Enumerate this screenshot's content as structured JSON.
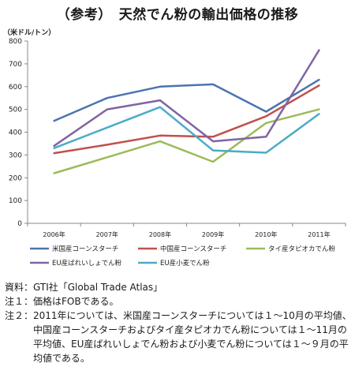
{
  "title": "（参考）　天然でん粉の輸出価格の推移",
  "chart_data": {
    "type": "line",
    "ylabel": "（米ドル/トン）",
    "ylim": [
      0,
      800
    ],
    "yticks": [
      0,
      100,
      200,
      300,
      400,
      500,
      600,
      700,
      800
    ],
    "categories": [
      "2006年",
      "2007年",
      "2008年",
      "2009年",
      "2010年",
      "2011年"
    ],
    "grid": false,
    "legend_position": "bottom",
    "series": [
      {
        "name": "米国産コーンスターチ",
        "color": "#4a74b0",
        "values": [
          450,
          550,
          600,
          610,
          490,
          630
        ]
      },
      {
        "name": "中国産コーンスターチ",
        "color": "#c0504d",
        "values": [
          308,
          345,
          385,
          380,
          470,
          605
        ]
      },
      {
        "name": "タイ産タピオカでん粉",
        "color": "#9bbb59",
        "values": [
          220,
          290,
          360,
          270,
          440,
          500
        ]
      },
      {
        "name": "EU産ばれいしょでん粉",
        "color": "#8064a2",
        "values": [
          340,
          500,
          540,
          360,
          380,
          760
        ]
      },
      {
        "name": "EU産小麦でん粉",
        "color": "#4bacc6",
        "values": [
          330,
          420,
          510,
          320,
          310,
          480
        ]
      }
    ]
  },
  "notes": [
    {
      "label": "資料：",
      "text": "GTI社「Global Trade Atlas」"
    },
    {
      "label": "注１：",
      "text": "価格はFOBである。"
    },
    {
      "label": "注２：",
      "text": "2011年については、米国産コーンスターチについては１～10月の平均値、中国産コーンスターチおよびタイ産タピオカでん粉については１～11月の平均値、EU産ばれいしょでん粉および小麦でん粉については１～９月の平均値である。"
    }
  ]
}
